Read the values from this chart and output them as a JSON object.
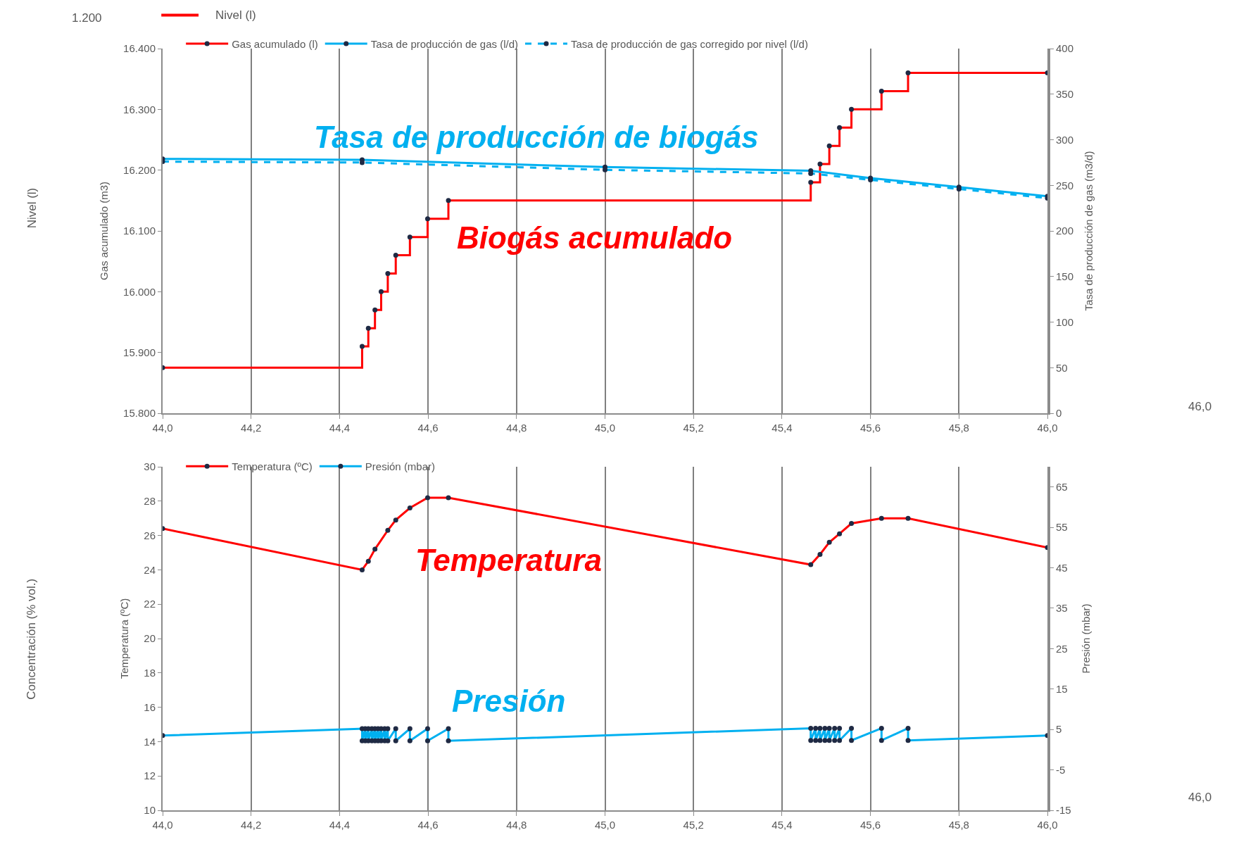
{
  "chart_data": [
    {
      "type": "line",
      "xlabel": null,
      "ylabel": "Gas acumulado (m3)",
      "y2label": "Tasa de producción de gas (m3/d)",
      "xlim": [
        44.0,
        46.0
      ],
      "xticks": [
        {
          "value": 44.0,
          "label": "44,0"
        },
        {
          "value": 44.2,
          "label": "44,2"
        },
        {
          "value": 44.4,
          "label": "44,4"
        },
        {
          "value": 44.6,
          "label": "44,6"
        },
        {
          "value": 44.8,
          "label": "44,8"
        },
        {
          "value": 45.0,
          "label": "45,0"
        },
        {
          "value": 45.2,
          "label": "45,2"
        },
        {
          "value": 45.4,
          "label": "45,4"
        },
        {
          "value": 45.6,
          "label": "45,6"
        },
        {
          "value": 45.8,
          "label": "45,8"
        },
        {
          "value": 46.0,
          "label": "46,0"
        }
      ],
      "ylim": [
        15800,
        16400
      ],
      "yticks": [
        {
          "value": 15800,
          "label": "15.800"
        },
        {
          "value": 15900,
          "label": "15.900"
        },
        {
          "value": 16000,
          "label": "16.000"
        },
        {
          "value": 16100,
          "label": "16.100"
        },
        {
          "value": 16200,
          "label": "16.200"
        },
        {
          "value": 16300,
          "label": "16.300"
        },
        {
          "value": 16400,
          "label": "16.400"
        }
      ],
      "y2lim": [
        0,
        400
      ],
      "y2ticks": [
        0,
        50,
        100,
        150,
        200,
        250,
        300,
        350,
        400
      ],
      "grid": "x",
      "legend": "top",
      "marker": "circle",
      "series": [
        {
          "name": "Gas acumulado (l)",
          "type": "step",
          "color": "#ff0000",
          "x": [
            44.0,
            44.451,
            44.465,
            44.48,
            44.494,
            44.509,
            44.527,
            44.559,
            44.599,
            44.646,
            45.465,
            45.486,
            45.507,
            45.53,
            45.557,
            45.625,
            45.685,
            46.0
          ],
          "values": [
            15875,
            15910,
            15940,
            15970,
            16000,
            16030,
            16060,
            16090,
            16120,
            16150,
            16180,
            16210,
            16240,
            16270,
            16300,
            16330,
            16360,
            16360
          ]
        },
        {
          "name": "Tasa de producción de gas (l/d)",
          "axis": "y2",
          "color": "#00b0f0",
          "x": [
            44.0,
            44.451,
            45.0,
            45.465,
            45.6,
            45.8,
            46.0
          ],
          "values": [
            279,
            278,
            270,
            266,
            258,
            248,
            238
          ]
        },
        {
          "name": "Tasa de producción de gas corregido por nivel (l/d)",
          "axis": "y2",
          "color": "#00b0f0",
          "line_style": "dashed",
          "x": [
            44.0,
            44.451,
            45.0,
            45.465,
            45.6,
            45.8,
            46.0
          ],
          "values": [
            276,
            275,
            267,
            263,
            256,
            246,
            236
          ]
        }
      ],
      "annotations": [
        "Tasa de producción de biogás",
        "Biogás acumulado",
        "1.200",
        "Nivel (l)",
        "Nivel (l)",
        "46,0"
      ]
    },
    {
      "type": "line",
      "ylabel": "Temperatura (ºC)",
      "y2label": "Presión (mbar)",
      "xlim": [
        44.0,
        46.0
      ],
      "xticks": [
        {
          "value": 44.0,
          "label": "44,0"
        },
        {
          "value": 44.2,
          "label": "44,2"
        },
        {
          "value": 44.4,
          "label": "44,4"
        },
        {
          "value": 44.6,
          "label": "44,6"
        },
        {
          "value": 44.8,
          "label": "44,8"
        },
        {
          "value": 45.0,
          "label": "45,0"
        },
        {
          "value": 45.2,
          "label": "45,2"
        },
        {
          "value": 45.4,
          "label": "45,4"
        },
        {
          "value": 45.6,
          "label": "45,6"
        },
        {
          "value": 45.8,
          "label": "45,8"
        },
        {
          "value": 46.0,
          "label": "46,0"
        }
      ],
      "ylim": [
        10,
        30
      ],
      "yticks": [
        10,
        12,
        14,
        16,
        18,
        20,
        22,
        24,
        26,
        28,
        30
      ],
      "y2lim": [
        -15,
        70
      ],
      "y2ticks": [
        -15,
        -5,
        5,
        15,
        25,
        35,
        45,
        55,
        65
      ],
      "grid": "x",
      "legend": "top",
      "marker": "circle",
      "series": [
        {
          "name": "Temperatura (ºC)",
          "color": "#ff0000",
          "x": [
            44.0,
            44.451,
            44.465,
            44.48,
            44.509,
            44.527,
            44.559,
            44.599,
            44.646,
            45.465,
            45.486,
            45.507,
            45.53,
            45.557,
            45.625,
            45.685,
            46.0
          ],
          "values": [
            26.4,
            24.0,
            24.5,
            25.2,
            26.3,
            26.9,
            27.6,
            28.2,
            28.2,
            24.3,
            24.9,
            25.6,
            26.1,
            26.7,
            27.0,
            27.0,
            25.3
          ]
        },
        {
          "name": "Presión (mbar)",
          "axis": "y2",
          "color": "#00b0f0",
          "x": [
            44.0,
            44.451,
            44.451,
            44.458,
            44.458,
            44.465,
            44.465,
            44.473,
            44.473,
            44.48,
            44.48,
            44.487,
            44.487,
            44.494,
            44.494,
            44.502,
            44.502,
            44.509,
            44.509,
            44.527,
            44.527,
            44.559,
            44.559,
            44.599,
            44.599,
            44.646,
            44.646,
            45.465,
            45.465,
            45.476,
            45.476,
            45.486,
            45.486,
            45.497,
            45.497,
            45.507,
            45.507,
            45.519,
            45.519,
            45.53,
            45.53,
            45.557,
            45.557,
            45.625,
            45.625,
            45.685,
            45.685,
            46.0
          ],
          "values": [
            3.5,
            5.2,
            2.2,
            5.2,
            2.2,
            5.2,
            2.2,
            5.2,
            2.2,
            5.2,
            2.2,
            5.2,
            2.2,
            5.2,
            2.2,
            5.2,
            2.2,
            5.2,
            2.2,
            5.2,
            2.2,
            5.2,
            2.2,
            5.2,
            2.2,
            5.2,
            2.2,
            5.3,
            2.3,
            5.3,
            2.3,
            5.3,
            2.3,
            5.3,
            2.3,
            5.3,
            2.3,
            5.3,
            2.3,
            5.3,
            2.3,
            5.3,
            2.3,
            5.3,
            2.3,
            5.3,
            2.3,
            3.5
          ]
        }
      ],
      "annotations": [
        "Temperatura",
        "Presión",
        "Concentración (% vol.)",
        "46,0"
      ]
    }
  ]
}
